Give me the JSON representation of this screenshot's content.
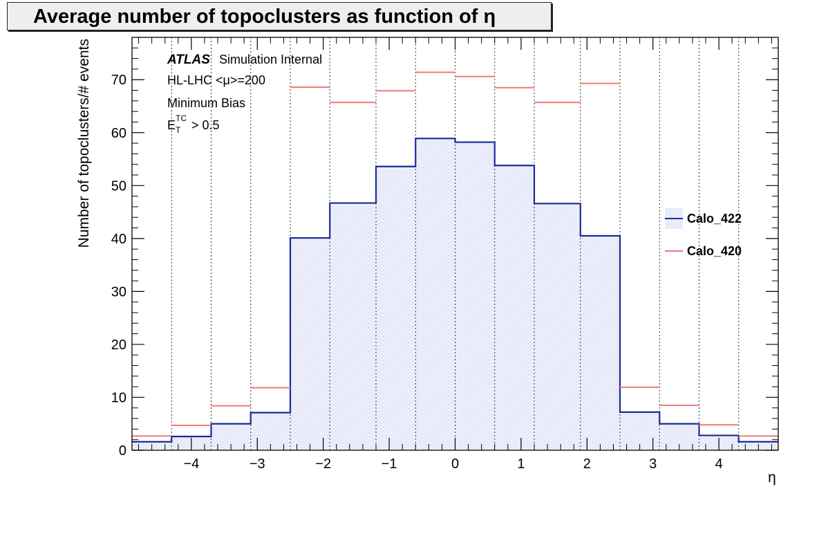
{
  "chart_data": {
    "type": "histogram",
    "title": "Average number of topoclusters as function of η",
    "xlabel": "η",
    "ylabel": "Number of topoclusters/# events",
    "xlim": [
      -4.9,
      4.9
    ],
    "ylim": [
      0,
      78
    ],
    "x_ticks": [
      -4,
      -3,
      -2,
      -1,
      0,
      1,
      2,
      3,
      4
    ],
    "y_ticks": [
      0,
      10,
      20,
      30,
      40,
      50,
      60,
      70
    ],
    "x_tick_labels": [
      "−4",
      "−3",
      "−2",
      "−1",
      "0",
      "1",
      "2",
      "3",
      "4"
    ],
    "y_tick_labels": [
      "0",
      "10",
      "20",
      "30",
      "40",
      "50",
      "60",
      "70"
    ],
    "grid_x": true,
    "bin_edges": [
      -4.9,
      -4.3,
      -3.7,
      -3.1,
      -2.5,
      -1.9,
      -1.2,
      -0.6,
      0.0,
      0.6,
      1.2,
      1.9,
      2.5,
      3.1,
      3.7,
      4.3,
      4.9
    ],
    "series": [
      {
        "name": "Calo_422",
        "style": "filled-step",
        "color": "#1a2a99",
        "fill": "#e3e6f8",
        "values": [
          1.6,
          2.6,
          5.0,
          7.1,
          40.1,
          46.7,
          53.6,
          58.9,
          58.2,
          53.8,
          46.6,
          40.5,
          7.2,
          5.0,
          2.8,
          1.6
        ]
      },
      {
        "name": "Calo_420",
        "style": "bin-lines",
        "color": "#f07878",
        "values": [
          2.7,
          4.7,
          8.4,
          11.8,
          68.6,
          65.7,
          67.9,
          71.4,
          70.6,
          68.5,
          65.7,
          69.3,
          11.9,
          8.5,
          4.8,
          2.7
        ]
      }
    ],
    "annotations": {
      "atlas": "ATLAS",
      "status": "Simulation Internal",
      "line1": "HL-LHC <μ>=200",
      "line2": "Minimum Bias",
      "line3_main": "E",
      "line3_sup": "TC",
      "line3_sub": "T",
      "line3_rest": " > 0.5"
    },
    "legend_placement": "right"
  }
}
